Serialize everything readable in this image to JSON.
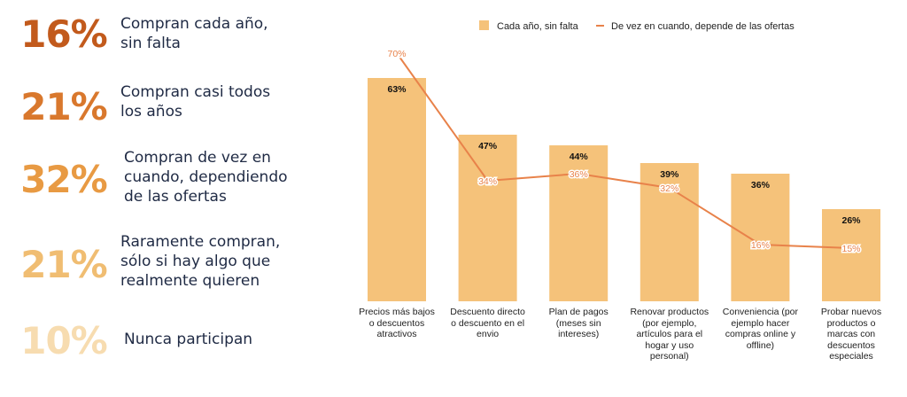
{
  "stats": [
    {
      "percent": "16%",
      "text": "Compran cada año,\nsin falta",
      "color": "#c25a1c"
    },
    {
      "percent": "21%",
      "text": "Compran casi todos\nlos años",
      "color": "#d9782d"
    },
    {
      "percent": "32%",
      "text": "Compran de vez en\ncuando, dependiendo\nde las ofertas",
      "color": "#e89a43"
    },
    {
      "percent": "21%",
      "text": "Raramente compran,\nsólo si hay algo que\nrealmente quieren",
      "color": "#f0bd72"
    },
    {
      "percent": "10%",
      "text": "Nunca participan",
      "color": "#f7dcb0"
    }
  ],
  "chart_data": {
    "type": "bar",
    "categories": [
      "Precios más bajos\no descuentos\natractivos",
      "Descuento directo\no descuento en el\nenvio",
      "Plan de pagos\n(meses sin\nintereses)",
      "Renovar productos\n(por ejemplo,\nartículos para el\nhogar y uso\npersonal)",
      "Conveniencia (por\nejemplo hacer\ncompras online y\noffline)",
      "Probar nuevos\nproductos o\nmarcas con\ndescuentos\nespeciales"
    ],
    "series": [
      {
        "name": "Cada año, sin falta",
        "type": "bar",
        "values": [
          63,
          47,
          44,
          39,
          36,
          26
        ],
        "labels": [
          "63%",
          "47%",
          "44%",
          "39%",
          "36%",
          "26%"
        ],
        "color": "#f5c27a"
      },
      {
        "name": "De vez en cuando, depende de las ofertas",
        "type": "line",
        "values": [
          70,
          34,
          36,
          32,
          16,
          15
        ],
        "labels": [
          "70%",
          "34%",
          "36%",
          "32%",
          "16%",
          "15%"
        ],
        "color": "#e8824a"
      }
    ],
    "ylim": [
      0,
      80
    ],
    "grid": false,
    "legend": "top"
  }
}
